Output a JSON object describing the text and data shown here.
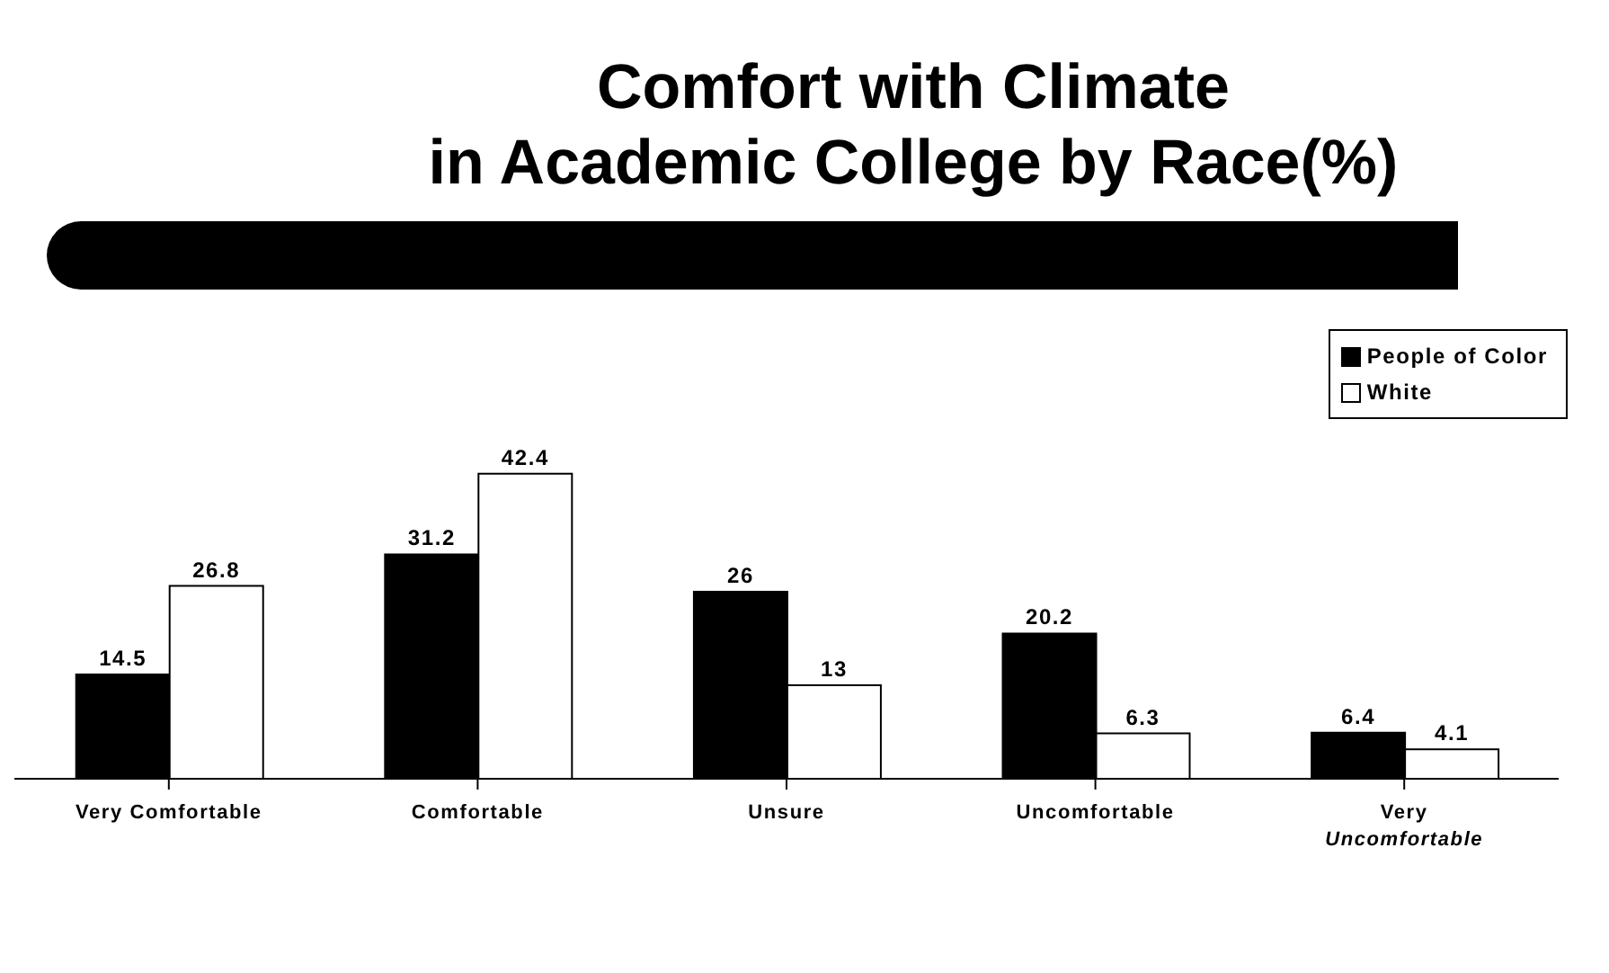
{
  "chart_data": {
    "type": "bar",
    "title": "Comfort with Climate\nin Academic College by Race(%)",
    "categories": [
      "Very Comfortable",
      "Comfortable",
      "Unsure",
      "Uncomfortable",
      "Very Uncomfortable"
    ],
    "series": [
      {
        "name": "People of Color",
        "color": "#000000",
        "values": [
          14.5,
          31.2,
          26,
          20.2,
          6.4
        ]
      },
      {
        "name": "White",
        "color": "#ffffff",
        "values": [
          26.8,
          42.4,
          13,
          6.3,
          4.1
        ]
      }
    ],
    "data_labels": true,
    "legend": "top right",
    "grid": false
  }
}
